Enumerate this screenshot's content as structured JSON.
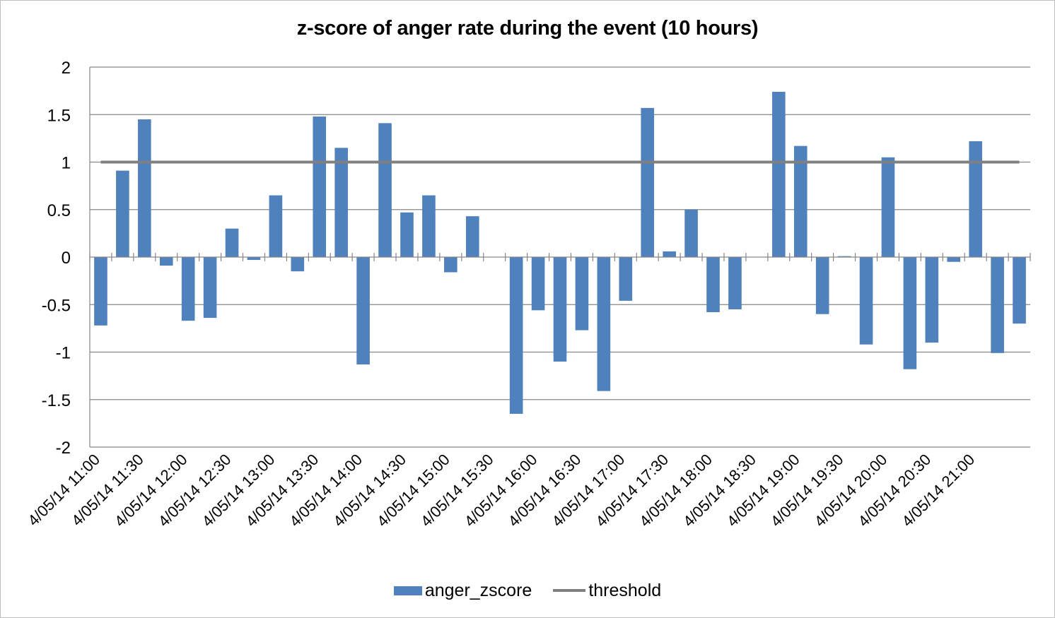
{
  "chart_data": {
    "type": "bar",
    "title": "z-score of anger rate during the event (10 hours)",
    "xlabel": "",
    "ylabel": "",
    "ylim": [
      -2,
      2
    ],
    "yticks": [
      2,
      1.5,
      1,
      0.5,
      0,
      -0.5,
      -1,
      -1.5,
      -2
    ],
    "grid": true,
    "legend_position": "bottom",
    "tick_labels": [
      "4/05/14 11:00",
      "4/05/14 11:30",
      "4/05/14 12:00",
      "4/05/14 12:30",
      "4/05/14 13:00",
      "4/05/14 13:30",
      "4/05/14 14:00",
      "4/05/14 14:30",
      "4/05/14 15:00",
      "4/05/14 15:30",
      "4/05/14 16:00",
      "4/05/14 16:30",
      "4/05/14 17:00",
      "4/05/14 17:30",
      "4/05/14 18:00",
      "4/05/14 18:30",
      "4/05/14 19:00",
      "4/05/14 19:30",
      "4/05/14 20:00",
      "4/05/14 20:30",
      "4/05/14 21:00"
    ],
    "series": [
      {
        "name": "anger_zscore",
        "kind": "bar",
        "color": "#4f81bd",
        "values": [
          -0.72,
          0.91,
          1.45,
          -0.09,
          -0.67,
          -0.64,
          0.3,
          -0.03,
          0.65,
          -0.15,
          1.48,
          1.15,
          -1.13,
          1.41,
          0.47,
          0.65,
          -0.16,
          0.43,
          0.0,
          -1.65,
          -0.56,
          -1.1,
          -0.77,
          -1.41,
          -0.46,
          1.57,
          0.06,
          0.5,
          -0.58,
          -0.55,
          0.0,
          1.74,
          1.17,
          -0.6,
          0.01,
          -0.92,
          1.05,
          -1.18,
          -0.9,
          -0.05,
          1.22,
          -1.01,
          -0.7
        ]
      },
      {
        "name": "threshold",
        "kind": "line",
        "color": "#808080",
        "values": [
          1,
          1,
          1,
          1,
          1,
          1,
          1,
          1,
          1,
          1,
          1,
          1,
          1,
          1,
          1,
          1,
          1,
          1,
          1,
          1,
          1,
          1,
          1,
          1,
          1,
          1,
          1,
          1,
          1,
          1,
          1,
          1,
          1,
          1,
          1,
          1,
          1,
          1,
          1,
          1,
          1,
          1,
          1
        ]
      }
    ]
  }
}
